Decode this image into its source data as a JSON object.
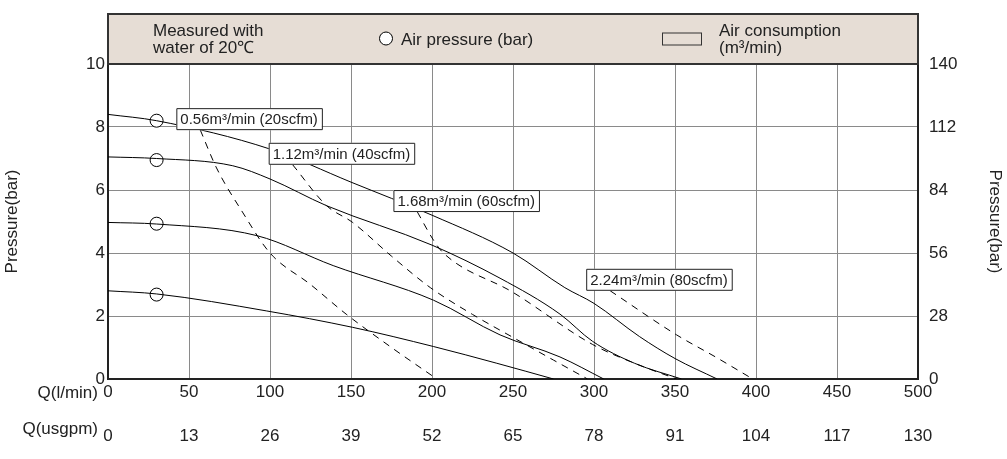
{
  "chart_data": {
    "type": "line",
    "xlabel": "Q(l/min)",
    "x2label": "Q(usgpm)",
    "ylabel": "Pressure(bar)",
    "y2label": "Pressure(bar)",
    "xlim": [
      0,
      500
    ],
    "xticks": [
      0,
      50,
      100,
      150,
      200,
      250,
      300,
      350,
      400,
      450,
      500
    ],
    "x2lim": [
      0,
      130
    ],
    "x2ticks": [
      0,
      13,
      26,
      39,
      52,
      65,
      78,
      91,
      104,
      117,
      130
    ],
    "ylim": [
      0,
      10
    ],
    "yticks": [
      0,
      2,
      4,
      6,
      8,
      10
    ],
    "y2lim": [
      0,
      140
    ],
    "y2ticks": [
      0,
      28,
      56,
      84,
      112,
      140
    ],
    "grid": true,
    "legend": "top",
    "annotations": [
      "Measured with water of 20℃",
      "Air consumption (m³/min)",
      {
        "text": "0.56m³/min (20scfm)",
        "x": 57,
        "y": 7.9
      },
      {
        "text": "1.12m³/min (40scfm)",
        "x": 114,
        "y": 6.8
      },
      {
        "text": "1.68m³/min (60scfm)",
        "x": 191,
        "y": 5.3
      },
      {
        "text": "2.24m³/min (80scfm)",
        "x": 310,
        "y": 2.8
      }
    ],
    "series": [
      {
        "type": "line",
        "color": "#000000",
        "line_style": "solid",
        "x": [
          0,
          30,
          100,
          150,
          200,
          250,
          282,
          300,
          328,
          350,
          376
        ],
        "values": [
          8.4,
          8.2,
          7.3,
          6.25,
          5.2,
          4.0,
          2.9,
          2.4,
          1.35,
          0.65,
          0
        ]
      },
      {
        "type": "line",
        "color": "#000000",
        "line_style": "solid",
        "x": [
          0,
          30,
          77,
          100,
          135,
          200,
          242,
          279,
          299,
          325,
          354
        ],
        "values": [
          7.05,
          7.0,
          6.77,
          6.35,
          5.5,
          4.25,
          3.2,
          2.06,
          1.2,
          0.5,
          0
        ]
      },
      {
        "type": "line",
        "color": "#000000",
        "line_style": "solid",
        "x": [
          0,
          30,
          92,
          139,
          201,
          242,
          279,
          306
        ],
        "values": [
          4.97,
          4.92,
          4.55,
          3.6,
          2.5,
          1.4,
          0.7,
          0
        ]
      },
      {
        "type": "line",
        "color": "#000000",
        "line_style": "solid",
        "x": [
          0,
          30,
          98,
          151,
          201,
          240,
          275
        ],
        "values": [
          2.8,
          2.7,
          2.16,
          1.64,
          1.03,
          0.5,
          0
        ]
      },
      {
        "type": "line",
        "color": "#000000",
        "line_style": "dashed",
        "x": [
          57,
          67,
          83,
          100,
          125,
          147,
          175,
          203
        ],
        "values": [
          7.9,
          6.7,
          5.3,
          4.0,
          3.0,
          2.06,
          1.0,
          0
        ]
      },
      {
        "type": "line",
        "color": "#000000",
        "line_style": "dashed",
        "x": [
          114,
          135,
          151,
          175,
          199,
          225,
          250,
          275,
          296
        ],
        "values": [
          6.8,
          5.5,
          4.97,
          3.9,
          2.9,
          2.05,
          1.32,
          0.6,
          0
        ]
      },
      {
        "type": "line",
        "color": "#000000",
        "line_style": "dashed",
        "x": [
          191,
          201,
          207,
          250,
          299,
          325,
          351
        ],
        "values": [
          5.3,
          4.4,
          4.0,
          2.75,
          1.1,
          0.5,
          0
        ]
      },
      {
        "type": "line",
        "color": "#000000",
        "line_style": "dashed",
        "x": [
          310,
          351,
          375,
          398
        ],
        "values": [
          2.8,
          1.4,
          0.7,
          0
        ]
      },
      {
        "type": "scatter",
        "name": "Air pressure (bar)",
        "color": "#000000",
        "marker": "circle",
        "x": [
          30,
          30,
          30,
          30
        ],
        "values": [
          8.2,
          6.95,
          4.93,
          2.68
        ]
      }
    ]
  }
}
